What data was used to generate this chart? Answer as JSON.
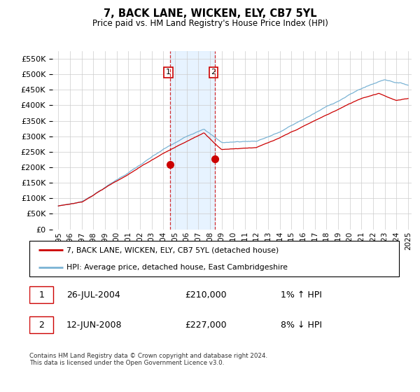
{
  "title": "7, BACK LANE, WICKEN, ELY, CB7 5YL",
  "subtitle": "Price paid vs. HM Land Registry's House Price Index (HPI)",
  "legend_line1": "7, BACK LANE, WICKEN, ELY, CB7 5YL (detached house)",
  "legend_line2": "HPI: Average price, detached house, East Cambridgeshire",
  "transaction1_date": "26-JUL-2004",
  "transaction1_price": "£210,000",
  "transaction1_hpi": "1% ↑ HPI",
  "transaction2_date": "12-JUN-2008",
  "transaction2_price": "£227,000",
  "transaction2_hpi": "8% ↓ HPI",
  "footer": "Contains HM Land Registry data © Crown copyright and database right 2024.\nThis data is licensed under the Open Government Licence v3.0.",
  "hpi_color": "#7ab3d4",
  "price_color": "#cc0000",
  "transaction1_x": 2004.57,
  "transaction2_x": 2008.45,
  "transaction1_y": 210000,
  "transaction2_y": 227000,
  "ylim": [
    0,
    575000
  ],
  "xlim_start": 1994.5,
  "xlim_end": 2025.3,
  "yticks": [
    0,
    50000,
    100000,
    150000,
    200000,
    250000,
    300000,
    350000,
    400000,
    450000,
    500000,
    550000
  ],
  "background_color": "#ffffff",
  "plot_bg_color": "#ffffff",
  "grid_color": "#cccccc",
  "span_color": "#ddeeff"
}
